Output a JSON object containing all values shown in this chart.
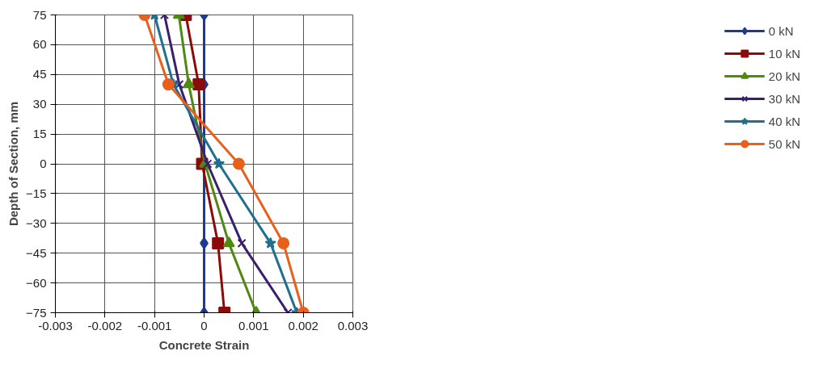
{
  "chart_data": {
    "type": "line",
    "xlabel": "Concrete Strain",
    "ylabel": "Depth of Section, mm",
    "xlim": [
      -0.003,
      0.003
    ],
    "xticks": [
      {
        "value": -0.003,
        "label": "-0.003"
      },
      {
        "value": -0.002,
        "label": "-0.002"
      },
      {
        "value": -0.001,
        "label": "-0.001"
      },
      0,
      {
        "value": 0.001,
        "label": "0.001"
      },
      {
        "value": 0.002,
        "label": "0.002"
      },
      {
        "value": 0.003,
        "label": "0.003"
      }
    ],
    "ylim": [
      -75,
      75
    ],
    "yticks": [
      -75,
      -60,
      -45,
      -30,
      -15,
      0,
      15,
      30,
      45,
      60,
      75
    ],
    "grid": true,
    "legend": "right",
    "line_style": "solid",
    "series": [
      {
        "name": "0 kN",
        "color": "#1f3a8f",
        "marker": "diamond",
        "x": [
          0,
          0,
          0,
          0,
          0
        ],
        "values": [
          75,
          40,
          0,
          -40,
          -75
        ]
      },
      {
        "name": "10 kN",
        "color": "#8b0a0a",
        "marker": "square",
        "x": [
          -0.00037,
          -0.00011,
          -4e-05,
          0.00028,
          0.00041
        ],
        "values": [
          75,
          40,
          0,
          -40,
          -75
        ]
      },
      {
        "name": "20 kN",
        "color": "#4f8a10",
        "marker": "triangle",
        "x": [
          -0.00051,
          -0.00031,
          2e-05,
          0.0005,
          0.00105
        ],
        "values": [
          75,
          40,
          0,
          -40,
          -75
        ]
      },
      {
        "name": "30 kN",
        "color": "#3a1f6e",
        "marker": "cross",
        "x": [
          -0.0008,
          -0.0005,
          7e-05,
          0.00076,
          0.00169
        ],
        "values": [
          75,
          40,
          0,
          -40,
          -75
        ]
      },
      {
        "name": "40 kN",
        "color": "#1f6f8f",
        "marker": "star",
        "x": [
          -0.001,
          -0.00062,
          0.0003,
          0.00134,
          0.00187
        ],
        "values": [
          75,
          40,
          0,
          -40,
          -75
        ]
      },
      {
        "name": "50 kN",
        "color": "#e8601c",
        "marker": "circle",
        "x": [
          -0.0012,
          -0.00072,
          0.0007,
          0.0016,
          0.002
        ],
        "values": [
          75,
          40,
          0,
          -40,
          -75
        ]
      }
    ]
  }
}
